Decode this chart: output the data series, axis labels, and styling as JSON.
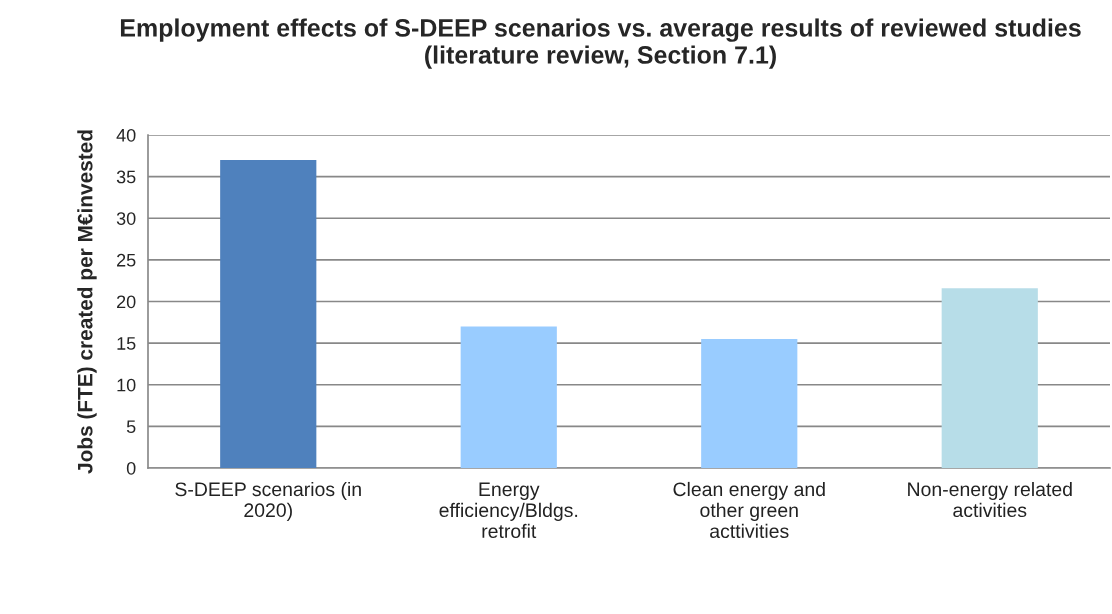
{
  "chart_data": {
    "type": "bar",
    "title": "Employment effects of S-DEEP scenarios vs. average results of reviewed studies (literature review, Section 7.1)",
    "ylabel": "Jobs (FTE) created per M€invested",
    "categories": [
      "S-DEEP scenarios (in\n2020)",
      "Energy\nefficiency/Bldgs.\nretrofit",
      "Clean energy and\nother green\nacttivities",
      "Non-energy related\nactivities"
    ],
    "values": [
      37,
      17,
      15.5,
      21.6
    ],
    "colors": [
      "#4f81bd",
      "#99ccff",
      "#99ccff",
      "#b7dde8"
    ],
    "ylim": [
      0,
      40
    ],
    "yticks": [
      0,
      5,
      10,
      15,
      20,
      25,
      30,
      35,
      40
    ],
    "grid": "y"
  }
}
